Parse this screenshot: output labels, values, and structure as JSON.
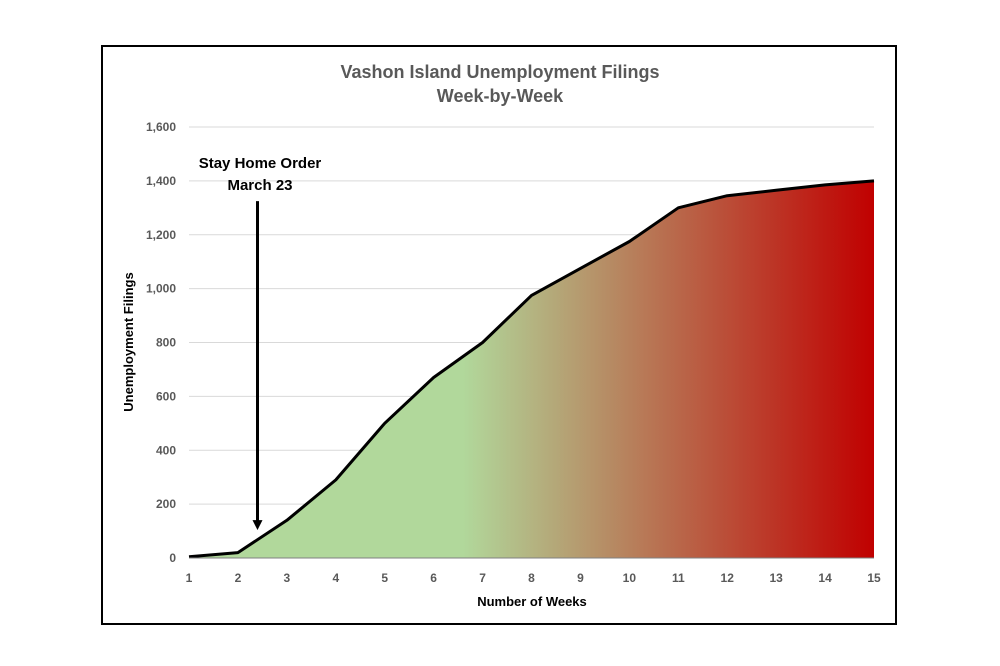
{
  "chart_data": {
    "type": "area",
    "title": "Vashon Island Unemployment Filings",
    "subtitle": "Week-by-Week",
    "xlabel": "Number of Weeks",
    "ylabel": "Unemployment Filings",
    "x": [
      1,
      2,
      3,
      4,
      5,
      6,
      7,
      8,
      9,
      10,
      11,
      12,
      13,
      14,
      15
    ],
    "values": [
      5,
      20,
      140,
      290,
      500,
      670,
      800,
      975,
      1075,
      1175,
      1300,
      1345,
      1365,
      1385,
      1400
    ],
    "xlim": [
      1,
      15
    ],
    "ylim": [
      0,
      1600
    ],
    "yticks": [
      "0",
      "200",
      "400",
      "600",
      "800",
      "1,000",
      "1,200",
      "1,400",
      "1,600"
    ],
    "ytick_values": [
      0,
      200,
      400,
      600,
      800,
      1000,
      1200,
      1400,
      1600
    ],
    "xticks": [
      "1",
      "2",
      "3",
      "4",
      "5",
      "6",
      "7",
      "8",
      "9",
      "10",
      "11",
      "12",
      "13",
      "14",
      "15"
    ],
    "grid": true,
    "legend": "none",
    "fill_gradient": [
      "#b1d89b",
      "#b1d89b",
      "#c00000"
    ],
    "line_color": "#000000",
    "annotation": {
      "line1": "Stay Home Order",
      "line2": "March 23",
      "arrow_x": 2.4,
      "arrow_from_y": 1325,
      "arrow_to_y": 100
    }
  }
}
